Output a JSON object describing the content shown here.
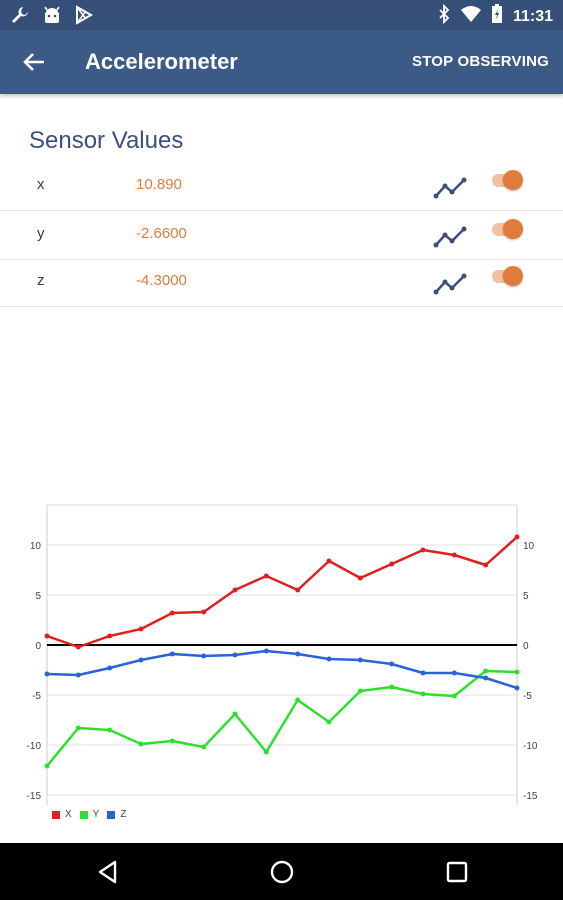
{
  "status_bar": {
    "time": "11:31",
    "left_icons": [
      "wrench-icon",
      "android-icon",
      "play-store-icon"
    ],
    "right_icons": [
      "bluetooth-icon",
      "wifi-icon",
      "battery-icon"
    ]
  },
  "app_bar": {
    "title": "Accelerometer",
    "action_label": "STOP OBSERVING",
    "back_icon": "arrow-back-icon"
  },
  "sensor_values": {
    "title": "Sensor Values",
    "rows": [
      {
        "axis": "x",
        "value": "10.890",
        "toggle_on": true
      },
      {
        "axis": "y",
        "value": "-2.6600",
        "toggle_on": true
      },
      {
        "axis": "z",
        "value": "-4.3000",
        "toggle_on": true
      }
    ]
  },
  "chart_data": {
    "type": "line",
    "ylim": [
      -16,
      14
    ],
    "y_ticks": [
      10,
      5,
      0,
      -5,
      -10,
      -15
    ],
    "y_tick_labels": [
      "10",
      "5",
      "0",
      "-5",
      "-10",
      "-15"
    ],
    "series": [
      {
        "name": "X",
        "color": "#e02020",
        "values": [
          0.9,
          -0.2,
          0.9,
          1.6,
          3.2,
          3.3,
          5.5,
          6.9,
          5.5,
          8.4,
          6.7,
          8.1,
          9.5,
          9.0,
          8.0,
          10.8
        ]
      },
      {
        "name": "Y",
        "color": "#2ee02e",
        "values": [
          -12.1,
          -8.3,
          -8.5,
          -9.9,
          -9.6,
          -10.2,
          -6.9,
          -10.7,
          -5.5,
          -7.7,
          -4.6,
          -4.2,
          -4.9,
          -5.1,
          -2.6,
          -2.7
        ]
      },
      {
        "name": "Z",
        "color": "#2a62d8",
        "values": [
          -2.9,
          -3.0,
          -2.3,
          -1.5,
          -0.9,
          -1.1,
          -1.0,
          -0.6,
          -0.9,
          -1.4,
          -1.5,
          -1.9,
          -2.8,
          -2.8,
          -3.3,
          -4.3
        ]
      }
    ],
    "legend": [
      "X",
      "Y",
      "Z"
    ],
    "legend_position": "bottom-left",
    "grid": true
  },
  "nav_bar": {
    "icons": [
      "back-triangle-icon",
      "home-circle-icon",
      "recents-square-icon"
    ]
  }
}
